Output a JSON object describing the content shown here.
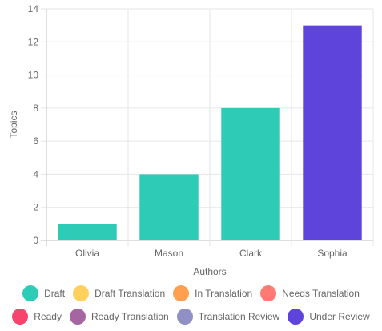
{
  "chart_data": {
    "type": "bar",
    "title": "",
    "xlabel": "Authors",
    "ylabel": "Topics",
    "categories": [
      "Olivia",
      "Mason",
      "Clark",
      "Sophia"
    ],
    "series": [
      {
        "name": "Draft",
        "color": "#2ecbb7",
        "values": [
          1,
          4,
          8,
          0
        ]
      },
      {
        "name": "Draft Translation",
        "color": "#ffd15c",
        "values": [
          0,
          0,
          0,
          0
        ]
      },
      {
        "name": "In Translation",
        "color": "#ff9f4f",
        "values": [
          0,
          0,
          0,
          0
        ]
      },
      {
        "name": "Needs Translation",
        "color": "#ff7a73",
        "values": [
          0,
          0,
          0,
          0
        ]
      },
      {
        "name": "Ready",
        "color": "#f7436d",
        "values": [
          0,
          0,
          0,
          0
        ]
      },
      {
        "name": "Ready Translation",
        "color": "#a565a0",
        "values": [
          0,
          0,
          0,
          0
        ]
      },
      {
        "name": "Translation Review",
        "color": "#9190c6",
        "values": [
          0,
          0,
          0,
          0
        ]
      },
      {
        "name": "Under Review",
        "color": "#5f44dc",
        "values": [
          0,
          0,
          0,
          13
        ]
      }
    ],
    "ylim": [
      0,
      14
    ],
    "yticks": [
      0,
      2,
      4,
      6,
      8,
      10,
      12,
      14
    ],
    "stacked": true,
    "grid": true,
    "legend_position": "bottom"
  }
}
